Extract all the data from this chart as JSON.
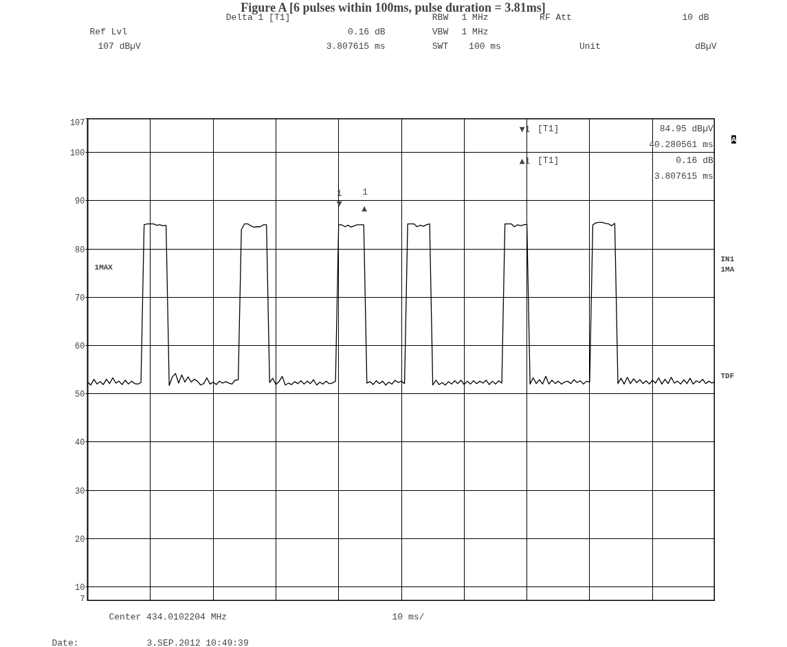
{
  "chart_data": {
    "type": "line",
    "title": "Figure A [6 pulses within 100ms, pulse duration = 3.81ms]",
    "annotations": [
      "Delta 1 [T1]",
      "Ref Lvl",
      "0.16 dB",
      "107 dBµV",
      "3.807615 ms",
      "RBW",
      "1 MHz",
      "VBW",
      "1 MHz",
      "SWT",
      "100 ms",
      "RF Att",
      "10 dB",
      "Unit",
      "dBµV",
      "▼1",
      "[T1]",
      "84.95 dBµV",
      "40.280561 ms",
      "▲1",
      "[T1]",
      "0.16 dB",
      "3.807615 ms",
      "1MAX",
      "1",
      "1",
      "▼",
      "▲",
      "A",
      "IN1",
      "1MA",
      "TDF",
      "Center 434.0102204 MHz",
      "10 ms/",
      "Date:",
      "3.SEP.2012  10:49:39"
    ],
    "categories": [
      null,
      null,
      null,
      null,
      null,
      null,
      null,
      null,
      null,
      null,
      null,
      null,
      null,
      null,
      null,
      null,
      null,
      null,
      null,
      null,
      null,
      null,
      null,
      null,
      null,
      null,
      null,
      null,
      null,
      null,
      null,
      null,
      null,
      null,
      null,
      null,
      null,
      null,
      null,
      null,
      null,
      null,
      null,
      null,
      null,
      null,
      null,
      null,
      null,
      null,
      null,
      null,
      null,
      null,
      null,
      null,
      null,
      null,
      null,
      null,
      null,
      null,
      null,
      null,
      null,
      null,
      null,
      null,
      null,
      null,
      null,
      null,
      null,
      null,
      null,
      null,
      null,
      null,
      null,
      null,
      null,
      null,
      null,
      null,
      null,
      null,
      null,
      null,
      null,
      null,
      null,
      null,
      null,
      null,
      null,
      null,
      null,
      null,
      null,
      null,
      null,
      null,
      null,
      null,
      null,
      null,
      null,
      null,
      null,
      null,
      null,
      null,
      null,
      null,
      null,
      null,
      null,
      null,
      null,
      null,
      null,
      null,
      null,
      null,
      null,
      null,
      null,
      null,
      null,
      null,
      null,
      null,
      null,
      null,
      null,
      null,
      null,
      null,
      null,
      null,
      null,
      null,
      null,
      null,
      null,
      null,
      null,
      null,
      null,
      null,
      null,
      null,
      null,
      null,
      null,
      null,
      null,
      null,
      null,
      null,
      null,
      null,
      null,
      null,
      null,
      null,
      null,
      null,
      null,
      null,
      null,
      null,
      null,
      null,
      null,
      null,
      null,
      null,
      null,
      null,
      null,
      null,
      null,
      null,
      null,
      null,
      null,
      null,
      null,
      null,
      null,
      null,
      null,
      null,
      null,
      null,
      null,
      null,
      null,
      null,
      null
    ],
    "series": [
      {
        "color": "#000000",
        "values": [
          52.4,
          51.8,
          53.0,
          52.0,
          52.5,
          51.9,
          53.0,
          52.1,
          53.3,
          52.2,
          52.6,
          51.9,
          52.8,
          52.0,
          52.6,
          52.1,
          52.0,
          52.3,
          85.0,
          85.2,
          85.2,
          85.2,
          84.9,
          85.0,
          84.8,
          84.9,
          51.7,
          53.5,
          54.2,
          52.2,
          53.9,
          52.4,
          53.5,
          52.4,
          53.0,
          52.6,
          51.8,
          52.1,
          53.3,
          52.0,
          52.4,
          51.9,
          52.6,
          52.2,
          52.5,
          52.2,
          52.0,
          52.8,
          52.9,
          84.0,
          85.2,
          85.2,
          84.8,
          84.5,
          84.6,
          84.6,
          85.0,
          85.0,
          52.3,
          53.2,
          51.9,
          52.5,
          53.6,
          51.8,
          52.2,
          51.9,
          52.5,
          52.1,
          52.7,
          52.0,
          52.6,
          52.1,
          52.9,
          51.8,
          52.4,
          52.0,
          52.6,
          52.1,
          52.2,
          52.6,
          85.0,
          85.0,
          84.6,
          84.9,
          84.5,
          84.8,
          85.0,
          85.0,
          85.0,
          52.2,
          52.5,
          51.9,
          52.7,
          52.1,
          52.6,
          51.8,
          52.4,
          52.0,
          52.8,
          52.3,
          52.6,
          52.1,
          85.2,
          85.2,
          85.2,
          84.6,
          84.9,
          84.7,
          85.0,
          85.2,
          51.8,
          52.8,
          51.9,
          52.3,
          51.8,
          52.5,
          52.0,
          52.7,
          52.1,
          52.8,
          51.9,
          52.6,
          52.0,
          52.7,
          52.1,
          52.6,
          52.2,
          52.8,
          51.9,
          52.6,
          52.0,
          52.7,
          52.2,
          85.2,
          85.2,
          85.2,
          84.6,
          85.0,
          84.8,
          85.0,
          85.1,
          52.0,
          53.3,
          52.1,
          52.9,
          52.0,
          53.6,
          52.0,
          52.8,
          52.1,
          52.6,
          52.0,
          52.4,
          52.6,
          52.1,
          52.9,
          52.3,
          52.7,
          52.0,
          52.6,
          52.4,
          85.0,
          85.4,
          85.5,
          85.5,
          85.3,
          85.2,
          84.8,
          85.3,
          52.1,
          53.2,
          52.0,
          53.4,
          52.1,
          53.1,
          52.3,
          52.9,
          52.1,
          52.7,
          52.0,
          52.8,
          52.2,
          53.3,
          52.0,
          53.0,
          52.1,
          53.4,
          52.2,
          52.6,
          52.0,
          52.9,
          52.1,
          53.2,
          52.0,
          52.7,
          52.3,
          53.0,
          52.1,
          52.6,
          52.2,
          52.6
        ]
      }
    ],
    "ylim": [
      7,
      107
    ],
    "yticks": [
      7,
      10,
      20,
      30,
      40,
      50,
      60,
      70,
      80,
      90,
      100,
      107
    ],
    "tick_labels": "y",
    "grid": true
  }
}
